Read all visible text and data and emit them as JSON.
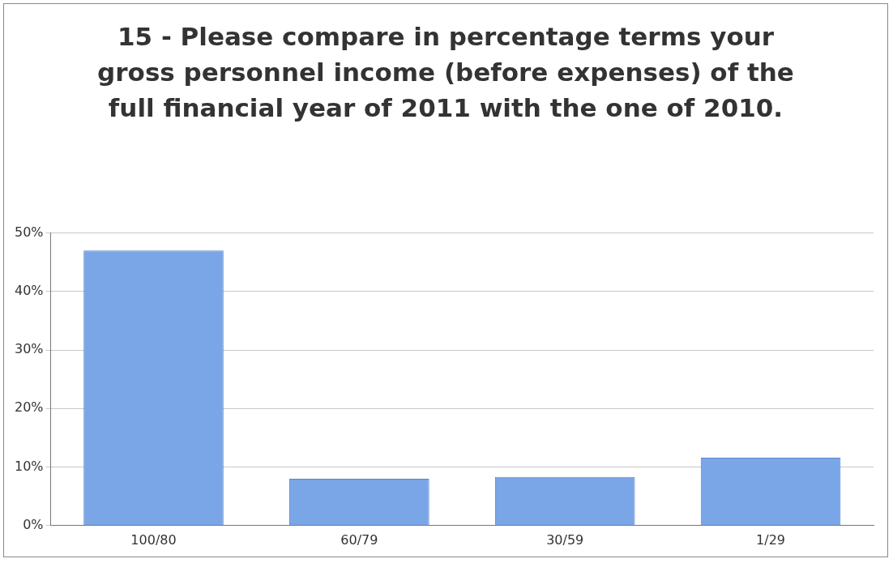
{
  "chart_data": {
    "type": "bar",
    "title": "15 - Please compare in percentage terms your gross personnel income (before expenses) of the full financial year of 2011 with the one of 2010.",
    "categories": [
      "100/80",
      "60/79",
      "30/59",
      "1/29"
    ],
    "values": [
      47,
      8,
      8.3,
      11.6
    ],
    "color": "#7aa6e8",
    "ylim": [
      0,
      50
    ],
    "yticks": [
      {
        "value": 0,
        "label": "0%"
      },
      {
        "value": 10,
        "label": "10%"
      },
      {
        "value": 20,
        "label": "20%"
      },
      {
        "value": 30,
        "label": "30%"
      },
      {
        "value": 40,
        "label": "40%"
      },
      {
        "value": 50,
        "label": "50%"
      }
    ],
    "grid": "y",
    "legend": false
  }
}
